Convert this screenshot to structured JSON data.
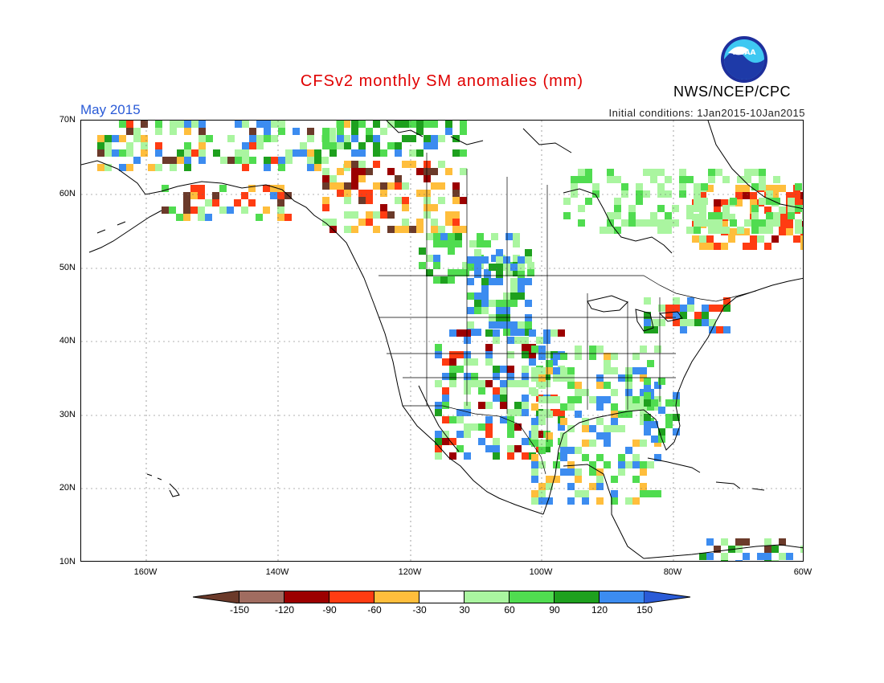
{
  "header": {
    "title": "CFSv2 monthly SM anomalies (mm)",
    "org": "NWS/NCEP/CPC",
    "month": "May 2015",
    "init": "Initial conditions: 1Jan2015-10Jan2015",
    "logo_text": "NOAA"
  },
  "map": {
    "lat_labels": [
      "70N",
      "60N",
      "50N",
      "40N",
      "30N",
      "20N",
      "10N"
    ],
    "lon_labels": [
      "160W",
      "140W",
      "120W",
      "100W",
      "80W",
      "60W"
    ]
  },
  "colorbar": {
    "labels": [
      "-150",
      "-120",
      "-90",
      "-60",
      "-30",
      "30",
      "60",
      "90",
      "120",
      "150"
    ],
    "colors": [
      "#6b3a2a",
      "#a06c60",
      "#9c0000",
      "#ff3c12",
      "#ffbe3c",
      "#ffffff",
      "#aaf5a0",
      "#50dc50",
      "#1ea01e",
      "#3c8cf0",
      "#2a5bd7"
    ]
  },
  "anomaly_colors": {
    "lgreen": "#aaf5a0",
    "green": "#50dc50",
    "dgreen": "#1ea01e",
    "blue": "#3c8cf0",
    "orange": "#ffbe3c",
    "red": "#ff3c12",
    "dred": "#9c0000",
    "brown": "#6b3a2a",
    "ltbrown": "#a06c60"
  }
}
